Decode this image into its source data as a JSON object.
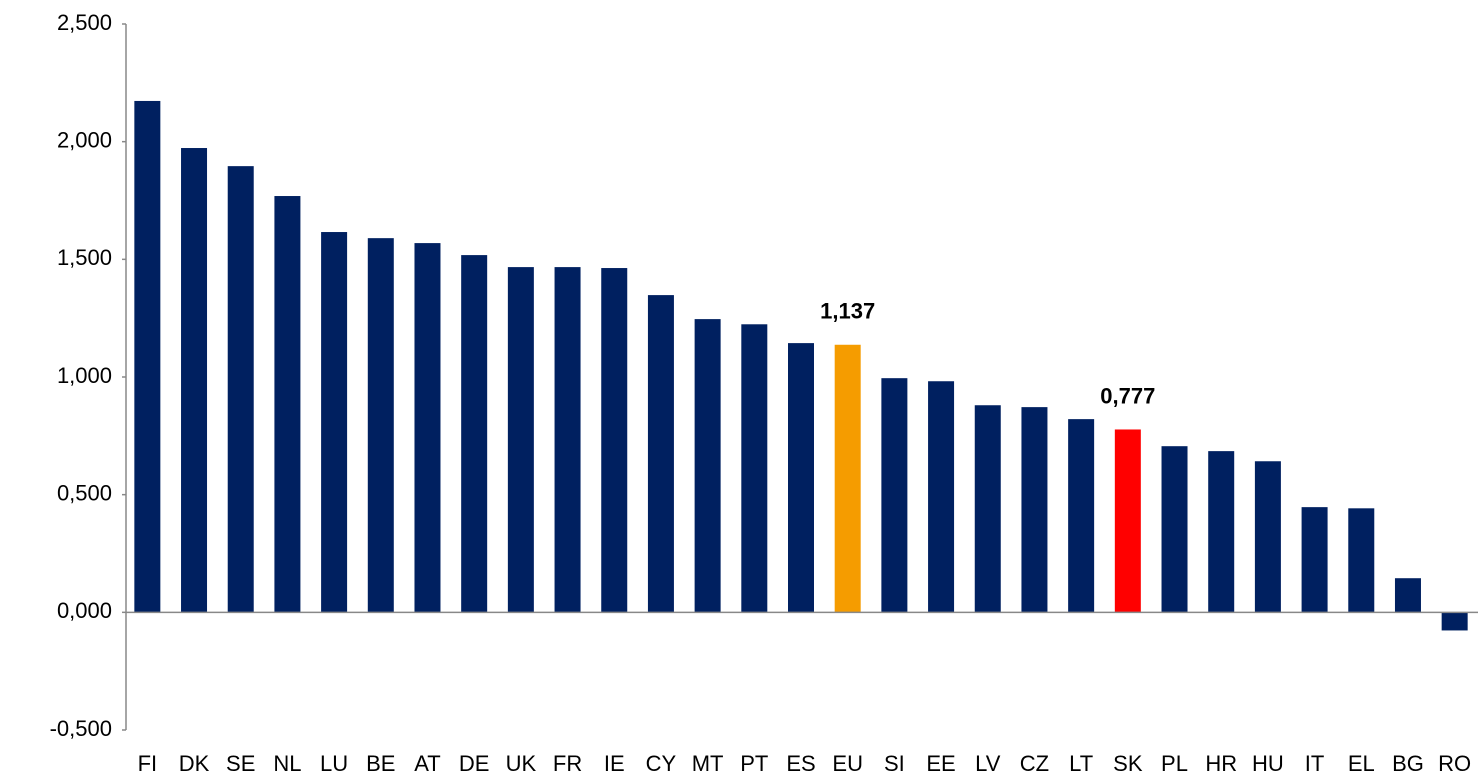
{
  "chart_data": {
    "type": "bar",
    "categories": [
      "FI",
      "DK",
      "SE",
      "NL",
      "LU",
      "BE",
      "AT",
      "DE",
      "UK",
      "FR",
      "IE",
      "CY",
      "MT",
      "PT",
      "ES",
      "EU",
      "SI",
      "EE",
      "LV",
      "CZ",
      "LT",
      "SK",
      "PL",
      "HR",
      "HU",
      "IT",
      "EL",
      "BG",
      "RO"
    ],
    "values": [
      2.173,
      1.973,
      1.896,
      1.769,
      1.616,
      1.59,
      1.569,
      1.518,
      1.467,
      1.467,
      1.463,
      1.348,
      1.246,
      1.224,
      1.144,
      1.137,
      0.995,
      0.982,
      0.88,
      0.872,
      0.821,
      0.777,
      0.706,
      0.685,
      0.642,
      0.447,
      0.442,
      0.145,
      -0.077
    ],
    "value_labels": [
      null,
      null,
      null,
      null,
      null,
      null,
      null,
      null,
      null,
      null,
      null,
      null,
      null,
      null,
      null,
      "1,137",
      null,
      null,
      null,
      null,
      null,
      "0,777",
      null,
      null,
      null,
      null,
      null,
      null,
      null
    ],
    "colors": [
      "#002060",
      "#002060",
      "#002060",
      "#002060",
      "#002060",
      "#002060",
      "#002060",
      "#002060",
      "#002060",
      "#002060",
      "#002060",
      "#002060",
      "#002060",
      "#002060",
      "#002060",
      "#f59c00",
      "#002060",
      "#002060",
      "#002060",
      "#002060",
      "#002060",
      "#ff0000",
      "#002060",
      "#002060",
      "#002060",
      "#002060",
      "#002060",
      "#002060",
      "#002060"
    ],
    "ylim": [
      -0.5,
      2.5
    ],
    "yticks": [
      {
        "value": -0.5,
        "label": "-0,500"
      },
      {
        "value": 0,
        "label": "0,000"
      },
      {
        "value": 0.5,
        "label": "0,500"
      },
      {
        "value": 1,
        "label": "1,000"
      },
      {
        "value": 1.5,
        "label": "1,500"
      },
      {
        "value": 2,
        "label": "2,000"
      },
      {
        "value": 2.5,
        "label": "2,500"
      }
    ],
    "grid": false
  }
}
